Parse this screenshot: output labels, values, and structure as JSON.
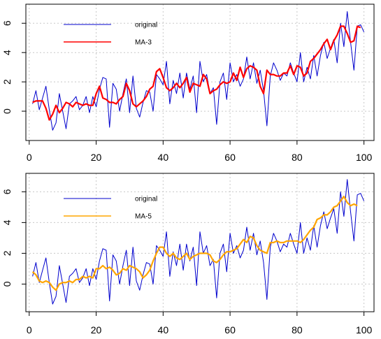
{
  "chart_data": [
    {
      "type": "line",
      "title": "",
      "xlabel": "",
      "ylabel": "",
      "xlim": [
        -1,
        103
      ],
      "ylim": [
        -2,
        7.3
      ],
      "xticks": [
        0,
        20,
        40,
        60,
        80,
        100
      ],
      "yticks": [
        0,
        2,
        4,
        6
      ],
      "grid": true,
      "legend_position": "top-left",
      "series": [
        {
          "name": "original",
          "color": "#0000CD",
          "x": [
            1,
            2,
            3,
            4,
            5,
            6,
            7,
            8,
            9,
            10,
            11,
            12,
            13,
            14,
            15,
            16,
            17,
            18,
            19,
            20,
            21,
            22,
            23,
            24,
            25,
            26,
            27,
            28,
            29,
            30,
            31,
            32,
            33,
            34,
            35,
            36,
            37,
            38,
            39,
            40,
            41,
            42,
            43,
            44,
            45,
            46,
            47,
            48,
            49,
            50,
            51,
            52,
            53,
            54,
            55,
            56,
            57,
            58,
            59,
            60,
            61,
            62,
            63,
            64,
            65,
            66,
            67,
            68,
            69,
            70,
            71,
            72,
            73,
            74,
            75,
            76,
            77,
            78,
            79,
            80,
            81,
            82,
            83,
            84,
            85,
            86,
            87,
            88,
            89,
            90,
            91,
            92,
            93,
            94,
            95,
            96,
            97,
            98,
            99,
            100
          ],
          "values": [
            0.5,
            1.4,
            0.1,
            0.9,
            1.7,
            0.1,
            -1.3,
            -0.8,
            1.2,
            0.0,
            -1.2,
            0.5,
            0.7,
            1.0,
            0.1,
            0.4,
            1.0,
            -0.1,
            1.0,
            0.3,
            1.5,
            2.3,
            2.2,
            -1.1,
            1.9,
            1.5,
            0.0,
            1.2,
            2.2,
            -0.1,
            2.4,
            0.2,
            -0.4,
            0.6,
            1.4,
            1.3,
            0.0,
            2.5,
            2.2,
            1.8,
            3.4,
            0.5,
            2.1,
            1.2,
            2.6,
            0.9,
            2.6,
            1.5,
            2.4,
            -0.1,
            3.4,
            2.0,
            2.5,
            1.2,
            1.6,
            -0.9,
            2.0,
            2.6,
            0.8,
            3.3,
            2.0,
            2.5,
            1.7,
            2.2,
            3.7,
            2.2,
            3.3,
            1.9,
            2.8,
            1.4,
            -1.0,
            2.4,
            3.3,
            2.8,
            2.1,
            2.6,
            2.4,
            3.3,
            2.6,
            2.0,
            4.0,
            2.0,
            3.0,
            2.2,
            3.8,
            2.4,
            3.8,
            4.7,
            3.6,
            4.3,
            4.9,
            3.3,
            6.0,
            4.4,
            6.8,
            4.7,
            2.8,
            5.8,
            5.9,
            5.4
          ]
        },
        {
          "name": "MA-3",
          "color": "#FF0000",
          "x": [
            1,
            2,
            3,
            4,
            5,
            6,
            7,
            8,
            9,
            10,
            11,
            12,
            13,
            14,
            15,
            16,
            17,
            18,
            19,
            20,
            21,
            22,
            23,
            24,
            25,
            26,
            27,
            28,
            29,
            30,
            31,
            32,
            33,
            34,
            35,
            36,
            37,
            38,
            39,
            40,
            41,
            42,
            43,
            44,
            45,
            46,
            47,
            48,
            49,
            50,
            51,
            52,
            53,
            54,
            55,
            56,
            57,
            58,
            59,
            60,
            61,
            62,
            63,
            64,
            65,
            66,
            67,
            68,
            69,
            70,
            71,
            72,
            73,
            74,
            75,
            76,
            77,
            78,
            79,
            80,
            81,
            82,
            83,
            84,
            85,
            86,
            87,
            88,
            89,
            90,
            91,
            92,
            93,
            94,
            95,
            96,
            97,
            98,
            99
          ],
          "values": [
            0.6,
            0.7,
            0.7,
            0.7,
            0.2,
            -0.6,
            -0.2,
            0.4,
            -0.1,
            0.2,
            0.6,
            0.5,
            0.3,
            0.6,
            0.5,
            0.4,
            0.5,
            0.4,
            0.4,
            1.2,
            1.7,
            0.9,
            0.8,
            0.6,
            0.6,
            0.5,
            0.8,
            1.0,
            1.9,
            1.4,
            0.5,
            0.3,
            0.5,
            0.7,
            1.0,
            1.5,
            1.7,
            2.7,
            2.9,
            2.3,
            1.6,
            1.4,
            1.6,
            1.9,
            1.6,
            1.9,
            2.3,
            1.3,
            1.9,
            1.8,
            1.7,
            2.5,
            2.2,
            1.2,
            1.4,
            1.5,
            1.8,
            2.0,
            1.9,
            2.0,
            2.6,
            2.1,
            3.0,
            2.3,
            2.9,
            3.1,
            3.0,
            2.8,
            1.7,
            1.2,
            2.8,
            2.5,
            2.5,
            2.4,
            2.4,
            2.6,
            2.6,
            3.1,
            2.5,
            3.1,
            3.0,
            2.4,
            2.6,
            3.4,
            3.6,
            3.9,
            4.2,
            4.6,
            4.9,
            4.2,
            4.8,
            5.2,
            5.8,
            5.8,
            5.3,
            4.7,
            4.8,
            5.8,
            5.7
          ]
        }
      ]
    },
    {
      "type": "line",
      "title": "",
      "xlabel": "",
      "ylabel": "",
      "xlim": [
        -1,
        103
      ],
      "ylim": [
        -1.8,
        7.2
      ],
      "xticks": [
        0,
        20,
        40,
        60,
        80,
        100
      ],
      "yticks": [
        0,
        2,
        4,
        6
      ],
      "grid": true,
      "legend_position": "top-left",
      "series": [
        {
          "name": "original",
          "color": "#0000CD",
          "x": [
            1,
            2,
            3,
            4,
            5,
            6,
            7,
            8,
            9,
            10,
            11,
            12,
            13,
            14,
            15,
            16,
            17,
            18,
            19,
            20,
            21,
            22,
            23,
            24,
            25,
            26,
            27,
            28,
            29,
            30,
            31,
            32,
            33,
            34,
            35,
            36,
            37,
            38,
            39,
            40,
            41,
            42,
            43,
            44,
            45,
            46,
            47,
            48,
            49,
            50,
            51,
            52,
            53,
            54,
            55,
            56,
            57,
            58,
            59,
            60,
            61,
            62,
            63,
            64,
            65,
            66,
            67,
            68,
            69,
            70,
            71,
            72,
            73,
            74,
            75,
            76,
            77,
            78,
            79,
            80,
            81,
            82,
            83,
            84,
            85,
            86,
            87,
            88,
            89,
            90,
            91,
            92,
            93,
            94,
            95,
            96,
            97,
            98,
            99,
            100
          ],
          "values": [
            0.5,
            1.4,
            0.1,
            0.9,
            1.7,
            0.1,
            -1.3,
            -0.8,
            1.2,
            0.0,
            -1.2,
            0.5,
            0.7,
            1.0,
            0.1,
            0.4,
            1.0,
            -0.1,
            1.0,
            0.3,
            1.5,
            2.3,
            2.2,
            -1.1,
            1.9,
            1.5,
            0.0,
            1.2,
            2.2,
            -0.1,
            2.4,
            0.2,
            -0.4,
            0.6,
            1.4,
            1.3,
            0.0,
            2.5,
            2.2,
            1.8,
            3.4,
            0.5,
            2.1,
            1.2,
            2.6,
            0.9,
            2.6,
            1.5,
            2.4,
            -0.1,
            3.4,
            2.0,
            2.5,
            1.2,
            1.6,
            -0.9,
            2.0,
            2.6,
            0.8,
            3.3,
            2.0,
            2.5,
            1.7,
            2.2,
            3.7,
            2.2,
            3.3,
            1.9,
            2.8,
            1.4,
            -1.0,
            2.4,
            3.3,
            2.8,
            2.1,
            2.6,
            2.4,
            3.3,
            2.6,
            2.0,
            4.0,
            2.0,
            3.0,
            2.2,
            3.8,
            2.4,
            3.8,
            4.7,
            3.6,
            4.3,
            4.9,
            3.3,
            6.0,
            4.4,
            6.8,
            4.7,
            2.8,
            5.8,
            5.9,
            5.4
          ]
        },
        {
          "name": "MA-5",
          "color": "#FFA500",
          "x": [
            1,
            2,
            3,
            4,
            5,
            6,
            7,
            8,
            9,
            10,
            11,
            12,
            13,
            14,
            15,
            16,
            17,
            18,
            19,
            20,
            21,
            22,
            23,
            24,
            25,
            26,
            27,
            28,
            29,
            30,
            31,
            32,
            33,
            34,
            35,
            36,
            37,
            38,
            39,
            40,
            41,
            42,
            43,
            44,
            45,
            46,
            47,
            48,
            49,
            50,
            51,
            52,
            53,
            54,
            55,
            56,
            57,
            58,
            59,
            60,
            61,
            62,
            63,
            64,
            65,
            66,
            67,
            68,
            69,
            70,
            71,
            72,
            73,
            74,
            75,
            76,
            77,
            78,
            79,
            80,
            81,
            82,
            83,
            84,
            85,
            86,
            87,
            88,
            89,
            90,
            91,
            92,
            93,
            94,
            95,
            96,
            97,
            98
          ],
          "values": [
            0.8,
            0.6,
            0.2,
            0.1,
            0.2,
            0.1,
            -0.2,
            -0.4,
            0.0,
            0.1,
            0.1,
            0.2,
            0.1,
            0.3,
            0.3,
            0.5,
            0.4,
            0.5,
            0.4,
            1.0,
            1.0,
            1.2,
            1.0,
            1.1,
            0.9,
            0.6,
            0.7,
            1.0,
            0.9,
            1.2,
            1.1,
            1.0,
            0.8,
            0.4,
            0.6,
            0.9,
            1.5,
            2.0,
            2.4,
            2.4,
            2.0,
            1.8,
            2.0,
            1.7,
            1.6,
            1.8,
            2.0,
            1.6,
            1.8,
            1.9,
            2.0,
            2.0,
            2.0,
            1.9,
            1.5,
            1.4,
            1.6,
            1.9,
            2.1,
            2.1,
            2.2,
            2.3,
            2.6,
            2.9,
            2.7,
            3.1,
            3.0,
            2.5,
            2.2,
            2.1,
            2.0,
            2.7,
            2.7,
            2.8,
            2.7,
            2.7,
            2.8,
            2.8,
            2.8,
            2.8,
            2.7,
            2.9,
            3.2,
            3.5,
            3.7,
            4.2,
            4.3,
            4.5,
            4.5,
            4.7,
            5.0,
            5.1,
            5.4,
            5.7,
            5.3,
            5.1,
            5.2,
            5.1
          ]
        }
      ]
    }
  ]
}
